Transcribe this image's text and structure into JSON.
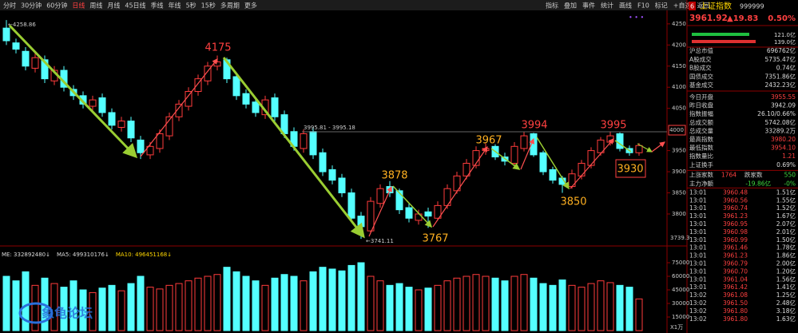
{
  "toolbar": {
    "left": [
      "分时",
      "30分钟",
      "60分钟",
      "日线",
      "周线",
      "月线",
      "45日线",
      "季线",
      "年线",
      "5秒",
      "15秒",
      "多周期",
      "更多"
    ],
    "right": [
      "指标",
      "叠加",
      "事件",
      "统计",
      "画线",
      "F10",
      "标记",
      "+自选",
      "返回"
    ]
  },
  "price_chart": {
    "type": "candlestick",
    "open": [
      4240,
      4205,
      4185,
      4145,
      4165,
      4115,
      4140,
      4095,
      4080,
      4055,
      4075,
      4040,
      4005,
      4020,
      3975,
      3940,
      3955,
      3985,
      4030,
      4055,
      4090,
      4115,
      4150,
      4165,
      4125,
      4085,
      4065,
      4035,
      4075,
      4035,
      3995,
      3955,
      3995,
      3945,
      3905,
      3885,
      3850,
      3795,
      3760,
      3825,
      3865,
      3855,
      3815,
      3785,
      3805,
      3790,
      3820,
      3855,
      3890,
      3915,
      3950,
      3960,
      3935,
      3920,
      3955,
      3990,
      3945,
      3905,
      3885,
      3865,
      3890,
      3915,
      3945,
      3970,
      3990,
      3955,
      3945
    ],
    "high": [
      4258.86,
      4215,
      4195,
      4180,
      4175,
      4150,
      4150,
      4105,
      4090,
      4080,
      4085,
      4050,
      4030,
      4030,
      3985,
      3970,
      4000,
      4040,
      4070,
      4100,
      4130,
      4160,
      4175,
      4170,
      4135,
      4095,
      4075,
      4080,
      4085,
      4045,
      4005,
      4000,
      4005,
      3955,
      3915,
      3895,
      3860,
      3805,
      3840,
      3870,
      3878,
      3860,
      3825,
      3810,
      3815,
      3830,
      3870,
      3900,
      3930,
      3960,
      3967,
      3965,
      3945,
      3970,
      3994,
      3992,
      3950,
      3912,
      3890,
      3905,
      3928,
      3958,
      3982,
      3995,
      3993,
      3962,
      3968
    ],
    "low": [
      4200,
      4180,
      4140,
      4135,
      4110,
      4105,
      4090,
      4070,
      4050,
      4045,
      4030,
      4000,
      3995,
      3970,
      3930,
      3930,
      3945,
      3975,
      4020,
      4045,
      4080,
      4105,
      4140,
      4110,
      4070,
      4050,
      4030,
      4025,
      4020,
      3980,
      3950,
      3945,
      3930,
      3890,
      3870,
      3840,
      3780,
      3741.11,
      3755,
      3815,
      3840,
      3800,
      3780,
      3775,
      3767,
      3785,
      3812,
      3848,
      3882,
      3908,
      3940,
      3928,
      3915,
      3912,
      3948,
      3935,
      3892,
      3872,
      3850,
      3860,
      3882,
      3908,
      3938,
      3962,
      3948,
      3938,
      3938
    ],
    "close": [
      4210,
      4190,
      4150,
      4170,
      4120,
      4140,
      4100,
      4080,
      4060,
      4070,
      4040,
      4010,
      4020,
      3980,
      3945,
      3960,
      3990,
      4030,
      4060,
      4090,
      4120,
      4150,
      4160,
      4120,
      4080,
      4060,
      4040,
      4070,
      4030,
      3990,
      3960,
      3990,
      3940,
      3900,
      3880,
      3850,
      3790,
      3770,
      3830,
      3860,
      3850,
      3810,
      3790,
      3800,
      3795,
      3820,
      3860,
      3890,
      3920,
      3950,
      3955,
      3935,
      3925,
      3960,
      3985,
      3940,
      3900,
      3880,
      3870,
      3895,
      3920,
      3950,
      3975,
      3985,
      3955,
      3945,
      3961.92
    ],
    "ylim": [
      3730,
      4280
    ],
    "yticks": [
      3800,
      3850,
      3900,
      3950,
      4050,
      4100,
      4150,
      4200,
      4250
    ],
    "up_color": "#ff3b3b",
    "down_color": "#54ffff",
    "annotations": [
      "4175",
      "3878",
      "3767",
      "3967",
      "3994",
      "3850",
      "3995",
      "3930"
    ],
    "max_label": "←4258.86",
    "min_label": "←3741.11",
    "ref_line_label": "3995.81 - 3995.18",
    "axis_box_label": "4000",
    "axis_bottom_label": "3739.3"
  },
  "volume_chart": {
    "legend": [
      "ME: 332892480↓",
      "MA5: 499310176↓",
      "MA10: 496451168↓"
    ],
    "values": [
      60000,
      55000,
      65000,
      50000,
      58000,
      52000,
      48000,
      55000,
      45000,
      42000,
      47000,
      50000,
      44000,
      52000,
      60000,
      48000,
      46000,
      50000,
      52000,
      55000,
      58000,
      60000,
      62000,
      70000,
      65000,
      60000,
      55000,
      50000,
      58000,
      62000,
      60000,
      55000,
      65000,
      70000,
      68000,
      66000,
      72000,
      75000,
      60000,
      55000,
      50000,
      52000,
      48000,
      45000,
      47000,
      50000,
      55000,
      58000,
      60000,
      62000,
      60000,
      58000,
      55000,
      60000,
      62000,
      58000,
      52000,
      50000,
      56000,
      50000,
      48000,
      52000,
      55000,
      53000,
      50000,
      48000,
      35000
    ],
    "ylim": [
      0,
      90000
    ],
    "yticks": [
      15000,
      30000,
      45000,
      60000,
      75000
    ],
    "unit_label": "X1万",
    "watermark": "象龟论坛"
  },
  "panel": {
    "number": "6",
    "name": "上证指数",
    "code": "999999",
    "price": "3961.92",
    "change": "▲19.83",
    "change_pct": "0.50%",
    "flow_in": "121.0亿",
    "flow_out": "139.0亿",
    "market_rows": [
      {
        "label": "沪总市值",
        "value": "696762亿"
      },
      {
        "label": "A股成交",
        "value": "5735.47亿"
      },
      {
        "label": "B股成交",
        "value": "0.74亿"
      },
      {
        "label": "国债成交",
        "value": "7351.86亿"
      },
      {
        "label": "基金成交",
        "value": "2432.23亿"
      }
    ],
    "stat_rows": [
      {
        "label": "今日开盘",
        "value": "3955.55",
        "color": "#ff4040"
      },
      {
        "label": "昨日收盘",
        "value": "3942.09",
        "color": "#dddddd"
      },
      {
        "label": "指数振幅",
        "value": "26.10/0.66%",
        "color": "#dddddd"
      },
      {
        "label": "总成交额",
        "value": "5742.08亿",
        "color": "#dddddd"
      },
      {
        "label": "总成交量",
        "value": "33289.2万",
        "color": "#dddddd"
      },
      {
        "label": "最高指数",
        "value": "3980.20",
        "color": "#ff4040"
      },
      {
        "label": "最低指数",
        "value": "3954.10",
        "color": "#ff4040"
      },
      {
        "label": "指数量比",
        "value": "1.21",
        "color": "#ff4040"
      },
      {
        "label": "上证换手",
        "value": "0.69%",
        "color": "#dddddd"
      }
    ],
    "up_label": "上涨家数",
    "up_count": "1764",
    "down_label": "跌家数",
    "down_count": "550",
    "net_label": "主力净额",
    "net_value": "-19.86亿",
    "net_pct": "-0%",
    "ticks": [
      {
        "time": "13:01",
        "price": "3960.48",
        "volume": "1.51亿"
      },
      {
        "time": "13:01",
        "price": "3960.56",
        "volume": "1.55亿"
      },
      {
        "time": "13:01",
        "price": "3960.74",
        "volume": "1.52亿"
      },
      {
        "time": "13:01",
        "price": "3961.23",
        "volume": "1.67亿"
      },
      {
        "time": "13:01",
        "price": "3960.95",
        "volume": "2.07亿"
      },
      {
        "time": "13:01",
        "price": "3960.98",
        "volume": "2.01亿"
      },
      {
        "time": "13:01",
        "price": "3960.99",
        "volume": "1.50亿"
      },
      {
        "time": "13:01",
        "price": "3961.46",
        "volume": "1.78亿"
      },
      {
        "time": "13:01",
        "price": "3961.23",
        "volume": "1.86亿"
      },
      {
        "time": "13:01",
        "price": "3960.79",
        "volume": "2.00亿"
      },
      {
        "time": "13:01",
        "price": "3960.70",
        "volume": "1.20亿"
      },
      {
        "time": "13:01",
        "price": "3961.04",
        "volume": "1.56亿"
      },
      {
        "time": "13:01",
        "price": "3961.42",
        "volume": "1.41亿"
      },
      {
        "time": "13:02",
        "price": "3961.08",
        "volume": "1.25亿"
      },
      {
        "time": "13:02",
        "price": "3961.50",
        "volume": "2.48亿"
      },
      {
        "time": "13:02",
        "price": "3961.80",
        "volume": "3.18亿"
      },
      {
        "time": "13:02",
        "price": "3961.80",
        "volume": "1.63亿"
      }
    ]
  }
}
